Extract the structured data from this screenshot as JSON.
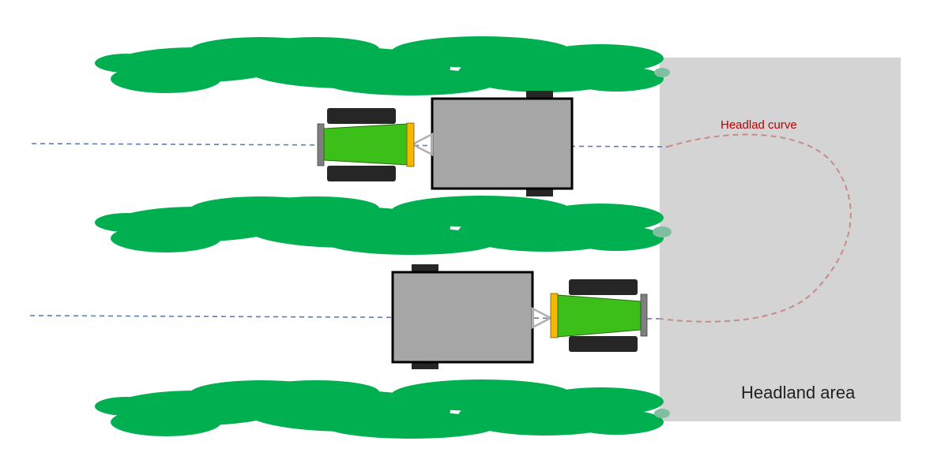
{
  "labels": {
    "headland_curve": "Headlad curve",
    "headland_area": "Headland area"
  },
  "colors": {
    "background": "#ffffff",
    "headland_area": "#d4d4d4",
    "crop_row": "#00b050",
    "crop_row_edge": "#7fbf9f",
    "path_line": "#5b7fb5",
    "headland_curve": "#c88a8a",
    "headland_curve_label": "#c00000",
    "headland_area_label": "#222222",
    "trailer_body": "#a6a6a6",
    "trailer_outline": "#000000",
    "tractor_body": "#3dbf1a",
    "tractor_front_bar": "#f5b800",
    "tractor_rear_bar": "#7f7f7f",
    "wheel": "#262626",
    "hitch": "#b0b0b0"
  },
  "tractors": [
    {
      "id": "top",
      "heading": "left"
    },
    {
      "id": "bottom",
      "heading": "right"
    }
  ],
  "crop_rows": [
    {
      "id": "row-1"
    },
    {
      "id": "row-2"
    },
    {
      "id": "row-3"
    }
  ]
}
